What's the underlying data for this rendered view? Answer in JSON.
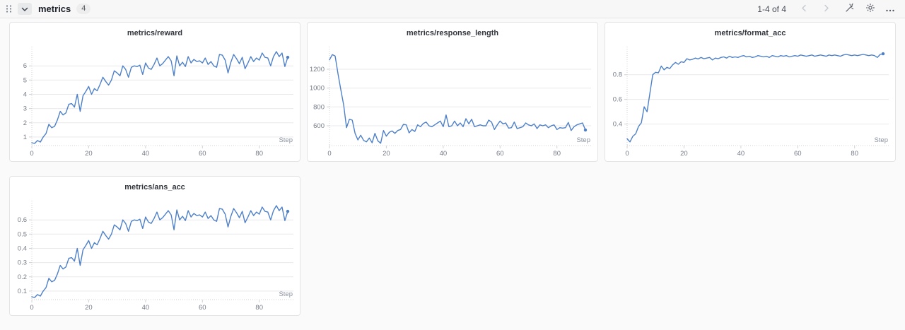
{
  "header": {
    "title": "metrics",
    "panel_count": "4",
    "icons": {
      "drag_handle": "six-dot-grip",
      "collapse": "chevron-down",
      "prev": "chevron-left",
      "next": "chevron-right",
      "wand": "magic-wand",
      "settings": "gear",
      "more": "ellipsis"
    }
  },
  "pagination": {
    "range_label": "1-4 of 4"
  },
  "colors": {
    "line": "#4e80c8",
    "grid": "#e9e9ec",
    "axis": "#cfd2d6",
    "tick_text": "#757b88"
  },
  "chart_data": [
    {
      "type": "line",
      "title": "metrics/reward",
      "xlabel": "Step",
      "x_ticks": [
        0,
        20,
        40,
        60,
        80
      ],
      "xlim": [
        0,
        92
      ],
      "y_ticks": [
        1,
        2,
        3,
        4,
        5,
        6
      ],
      "y_tick_labels": [
        "1",
        "2",
        "3",
        "4",
        "5",
        "6"
      ],
      "ylim": [
        0.4,
        7.15
      ],
      "grid": true,
      "legend": "none",
      "values": [
        0.6,
        0.55,
        0.75,
        0.65,
        1.0,
        1.25,
        1.9,
        1.65,
        1.75,
        2.2,
        2.8,
        2.55,
        2.7,
        3.3,
        3.35,
        3.1,
        4.0,
        2.8,
        3.9,
        4.2,
        4.55,
        4.0,
        4.4,
        4.25,
        4.7,
        5.2,
        4.9,
        4.65,
        5.0,
        5.65,
        5.5,
        5.3,
        6.0,
        5.75,
        5.2,
        5.9,
        6.0,
        5.95,
        6.05,
        5.4,
        6.2,
        5.85,
        5.75,
        6.1,
        6.55,
        6.0,
        6.15,
        6.4,
        6.65,
        6.35,
        5.3,
        6.7,
        6.0,
        6.25,
        5.95,
        6.65,
        6.2,
        6.45,
        6.3,
        6.35,
        6.2,
        6.55,
        6.1,
        6.3,
        6.0,
        5.9,
        6.8,
        6.75,
        6.4,
        5.5,
        6.25,
        6.8,
        6.5,
        6.15,
        6.6,
        5.8,
        6.2,
        6.65,
        6.3,
        6.55,
        6.4,
        6.9,
        6.6,
        6.55,
        6.0,
        6.65,
        7.0,
        6.65,
        6.9,
        5.95,
        6.6
      ]
    },
    {
      "type": "line",
      "title": "metrics/response_length",
      "xlabel": "Step",
      "x_ticks": [
        0,
        20,
        40,
        60,
        80
      ],
      "xlim": [
        0,
        92
      ],
      "y_ticks": [
        600,
        800,
        1000,
        1200
      ],
      "y_tick_labels": [
        "600",
        "800",
        "1000",
        "1200"
      ],
      "ylim": [
        390,
        1410
      ],
      "grid": true,
      "legend": "none",
      "values": [
        1300,
        1355,
        1340,
        1150,
        980,
        820,
        580,
        670,
        660,
        520,
        450,
        500,
        445,
        430,
        470,
        420,
        520,
        440,
        415,
        550,
        490,
        530,
        545,
        520,
        550,
        560,
        615,
        610,
        525,
        560,
        540,
        610,
        590,
        625,
        640,
        600,
        590,
        610,
        630,
        650,
        590,
        715,
        590,
        600,
        650,
        600,
        630,
        590,
        675,
        620,
        670,
        590,
        600,
        610,
        600,
        600,
        660,
        640,
        560,
        610,
        650,
        620,
        630,
        575,
        580,
        640,
        570,
        580,
        590,
        630,
        610,
        600,
        620,
        570,
        610,
        600,
        610,
        580,
        600,
        610,
        560,
        580,
        575,
        580,
        635,
        550,
        590,
        610,
        620,
        630,
        555
      ]
    },
    {
      "type": "line",
      "title": "metrics/format_acc",
      "xlabel": "Step",
      "x_ticks": [
        0,
        20,
        40,
        60,
        80
      ],
      "xlim": [
        0,
        92
      ],
      "y_ticks": [
        0.4,
        0.6,
        0.8
      ],
      "y_tick_labels": [
        "0.4",
        "0.6",
        "0.8"
      ],
      "ylim": [
        0.225,
        1.005
      ],
      "grid": true,
      "legend": "none",
      "values": [
        0.28,
        0.255,
        0.3,
        0.32,
        0.38,
        0.41,
        0.54,
        0.5,
        0.65,
        0.8,
        0.82,
        0.815,
        0.87,
        0.84,
        0.86,
        0.85,
        0.88,
        0.9,
        0.885,
        0.905,
        0.9,
        0.93,
        0.92,
        0.925,
        0.935,
        0.928,
        0.94,
        0.93,
        0.935,
        0.94,
        0.92,
        0.935,
        0.93,
        0.94,
        0.945,
        0.935,
        0.95,
        0.94,
        0.945,
        0.94,
        0.95,
        0.955,
        0.945,
        0.95,
        0.94,
        0.945,
        0.955,
        0.95,
        0.945,
        0.95,
        0.94,
        0.955,
        0.95,
        0.945,
        0.955,
        0.95,
        0.955,
        0.945,
        0.95,
        0.955,
        0.95,
        0.96,
        0.955,
        0.95,
        0.955,
        0.96,
        0.95,
        0.955,
        0.96,
        0.955,
        0.95,
        0.96,
        0.955,
        0.96,
        0.955,
        0.95,
        0.96,
        0.965,
        0.96,
        0.955,
        0.96,
        0.955,
        0.96,
        0.965,
        0.96,
        0.955,
        0.96,
        0.955,
        0.94,
        0.965,
        0.97
      ]
    },
    {
      "type": "line",
      "title": "metrics/ans_acc",
      "xlabel": "Step",
      "x_ticks": [
        0,
        20,
        40,
        60,
        80
      ],
      "xlim": [
        0,
        92
      ],
      "y_ticks": [
        0.1,
        0.2,
        0.3,
        0.4,
        0.5,
        0.6
      ],
      "y_tick_labels": [
        "0.1",
        "0.2",
        "0.3",
        "0.4",
        "0.5",
        "0.6"
      ],
      "ylim": [
        0.04,
        0.715
      ],
      "grid": true,
      "legend": "none",
      "values": [
        0.06,
        0.055,
        0.075,
        0.065,
        0.1,
        0.125,
        0.19,
        0.165,
        0.175,
        0.22,
        0.28,
        0.255,
        0.27,
        0.33,
        0.335,
        0.31,
        0.4,
        0.28,
        0.39,
        0.42,
        0.455,
        0.4,
        0.44,
        0.425,
        0.47,
        0.52,
        0.49,
        0.465,
        0.5,
        0.565,
        0.55,
        0.53,
        0.6,
        0.575,
        0.52,
        0.59,
        0.6,
        0.595,
        0.605,
        0.54,
        0.62,
        0.585,
        0.575,
        0.61,
        0.655,
        0.6,
        0.615,
        0.64,
        0.665,
        0.635,
        0.53,
        0.67,
        0.6,
        0.625,
        0.595,
        0.665,
        0.62,
        0.645,
        0.63,
        0.635,
        0.62,
        0.655,
        0.61,
        0.63,
        0.6,
        0.59,
        0.68,
        0.675,
        0.64,
        0.55,
        0.625,
        0.68,
        0.65,
        0.615,
        0.66,
        0.58,
        0.62,
        0.665,
        0.63,
        0.655,
        0.64,
        0.69,
        0.66,
        0.655,
        0.6,
        0.665,
        0.7,
        0.665,
        0.69,
        0.595,
        0.66
      ]
    }
  ]
}
